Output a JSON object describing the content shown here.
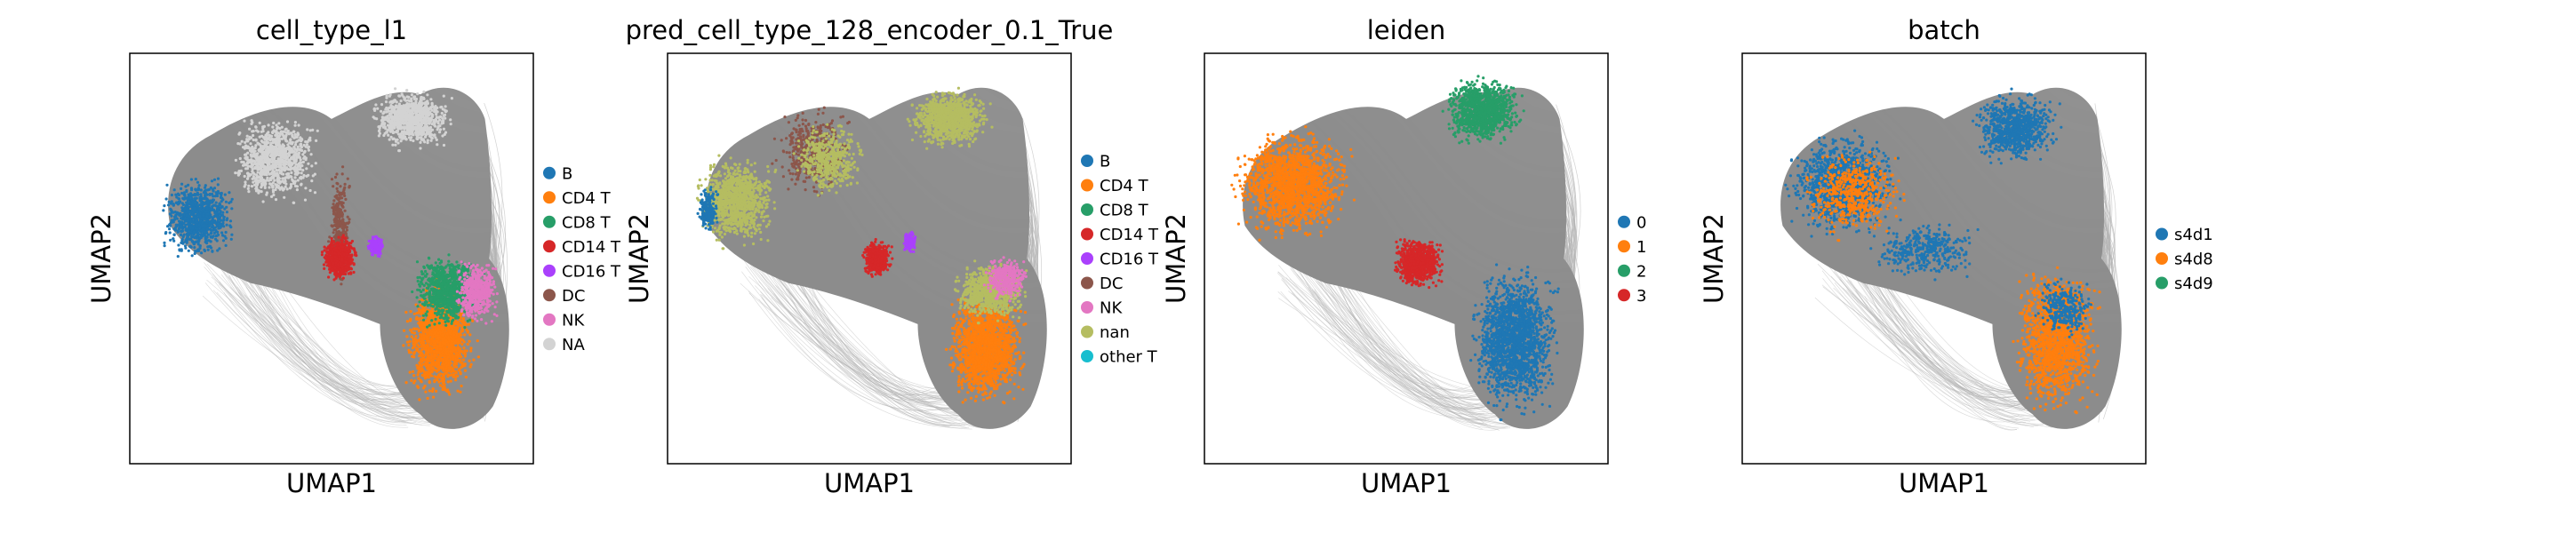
{
  "figure": {
    "colors": {
      "edges": "#8c8c8c",
      "edges_light": "#b4b4b4",
      "frame": "#000000"
    }
  },
  "chart_data": [
    {
      "type": "scatter",
      "title": "cell_type_l1",
      "xlabel": "UMAP1",
      "ylabel": "UMAP2",
      "ticks": "none",
      "grid": false,
      "legend_position": "right",
      "categories": [
        {
          "name": "B",
          "color": "#1f77b4"
        },
        {
          "name": "CD4 T",
          "color": "#ff7f0e"
        },
        {
          "name": "CD8 T",
          "color": "#279e68"
        },
        {
          "name": "CD14 T",
          "color": "#d62728"
        },
        {
          "name": "CD16 T",
          "color": "#aa40fc"
        },
        {
          "name": "DC",
          "color": "#8c564b"
        },
        {
          "name": "NK",
          "color": "#e377c2"
        },
        {
          "name": "NA",
          "color": "#d3d3d3"
        }
      ]
    },
    {
      "type": "scatter",
      "title": "pred_cell_type_128_encoder_0.1_True",
      "xlabel": "UMAP1",
      "ylabel": "UMAP2",
      "ticks": "none",
      "grid": false,
      "legend_position": "right",
      "categories": [
        {
          "name": "B",
          "color": "#1f77b4"
        },
        {
          "name": "CD4 T",
          "color": "#ff7f0e"
        },
        {
          "name": "CD8 T",
          "color": "#279e68"
        },
        {
          "name": "CD14 T",
          "color": "#d62728"
        },
        {
          "name": "CD16 T",
          "color": "#aa40fc"
        },
        {
          "name": "DC",
          "color": "#8c564b"
        },
        {
          "name": "NK",
          "color": "#e377c2"
        },
        {
          "name": "nan",
          "color": "#b5bd61"
        },
        {
          "name": "other T",
          "color": "#17becf"
        }
      ]
    },
    {
      "type": "scatter",
      "title": "leiden",
      "xlabel": "UMAP1",
      "ylabel": "UMAP2",
      "ticks": "none",
      "grid": false,
      "legend_position": "right",
      "categories": [
        {
          "name": "0",
          "color": "#1f77b4"
        },
        {
          "name": "1",
          "color": "#ff7f0e"
        },
        {
          "name": "2",
          "color": "#279e68"
        },
        {
          "name": "3",
          "color": "#d62728"
        }
      ]
    },
    {
      "type": "scatter",
      "title": "batch",
      "xlabel": "UMAP1",
      "ylabel": "UMAP2",
      "ticks": "none",
      "grid": false,
      "legend_position": "right",
      "categories": [
        {
          "name": "s4d1",
          "color": "#1f77b4"
        },
        {
          "name": "s4d8",
          "color": "#ff7f0e"
        },
        {
          "name": "s4d9",
          "color": "#279e68"
        }
      ]
    }
  ]
}
